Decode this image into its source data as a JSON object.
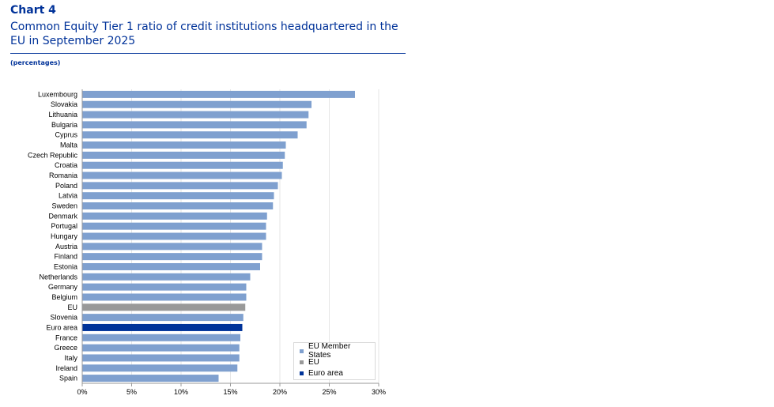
{
  "header": {
    "chart_number": "Chart 4",
    "title": "Common Equity Tier 1 ratio of credit institutions headquartered in the EU in September 2025",
    "unit": "(percentages)"
  },
  "colors": {
    "member": "#7fa0cf",
    "eu": "#999999",
    "euro_area": "#003399",
    "grid": "#e6e6e6",
    "axis": "#999999"
  },
  "chart_data": {
    "type": "bar",
    "orientation": "horizontal",
    "title": "Common Equity Tier 1 ratio of credit institutions headquartered in the EU in September 2025",
    "xlabel": "",
    "ylabel": "",
    "xlim": [
      0,
      30
    ],
    "x_ticks": [
      0,
      5,
      10,
      15,
      20,
      25,
      30
    ],
    "x_tick_labels": [
      "0%",
      "5%",
      "10%",
      "15%",
      "20%",
      "25%",
      "30%"
    ],
    "categories": [
      "Luxembourg",
      "Slovakia",
      "Lithuania",
      "Bulgaria",
      "Cyprus",
      "Malta",
      "Czech Republic",
      "Croatia",
      "Romania",
      "Poland",
      "Latvia",
      "Sweden",
      "Denmark",
      "Portugal",
      "Hungary",
      "Austria",
      "Finland",
      "Estonia",
      "Netherlands",
      "Germany",
      "Belgium",
      "EU",
      "Slovenia",
      "Euro area",
      "France",
      "Greece",
      "Italy",
      "Ireland",
      "Spain"
    ],
    "values": [
      27.6,
      23.2,
      22.9,
      22.7,
      21.8,
      20.6,
      20.5,
      20.3,
      20.2,
      19.8,
      19.4,
      19.3,
      18.7,
      18.6,
      18.6,
      18.2,
      18.2,
      18.0,
      17.0,
      16.6,
      16.6,
      16.5,
      16.3,
      16.2,
      16.0,
      15.9,
      15.9,
      15.7,
      13.8
    ],
    "groups": [
      "member",
      "member",
      "member",
      "member",
      "member",
      "member",
      "member",
      "member",
      "member",
      "member",
      "member",
      "member",
      "member",
      "member",
      "member",
      "member",
      "member",
      "member",
      "member",
      "member",
      "member",
      "eu",
      "member",
      "euro_area",
      "member",
      "member",
      "member",
      "member",
      "member"
    ],
    "legend": [
      {
        "key": "member",
        "label": "EU Member States"
      },
      {
        "key": "eu",
        "label": "EU"
      },
      {
        "key": "euro_area",
        "label": "Euro area"
      }
    ],
    "legend_position": "bottom-right",
    "grid": true
  }
}
